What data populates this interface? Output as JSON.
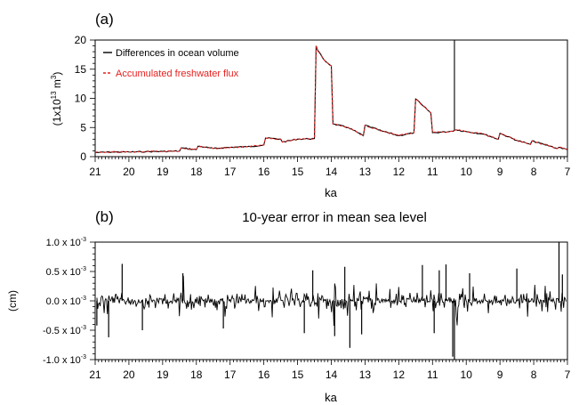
{
  "chart_data": [
    {
      "type": "line",
      "panel_label": "(a)",
      "title": "",
      "xlabel": "ka",
      "ylabel_parts": [
        "(1x10",
        "13",
        " m",
        "3",
        ")"
      ],
      "xlim": [
        21,
        7
      ],
      "ylim": [
        0,
        20
      ],
      "xticks": [
        "21",
        "20",
        "19",
        "18",
        "17",
        "16",
        "15",
        "14",
        "13",
        "12",
        "11",
        "10",
        "9",
        "8",
        "7"
      ],
      "yticks": [
        "0",
        "5",
        "10",
        "15",
        "20"
      ],
      "legend_position": "top-left",
      "series": [
        {
          "name": "Differences in ocean volume",
          "color": "#000000",
          "style": "solid",
          "x": [
            21,
            20.5,
            20,
            19.5,
            19,
            18.5,
            18.45,
            18,
            17.95,
            17.5,
            17,
            16.5,
            16,
            15.95,
            15.5,
            15.45,
            15,
            14.5,
            14.45,
            14.4,
            14.2,
            14,
            13.95,
            13.5,
            13.05,
            13,
            12.5,
            12,
            11.55,
            11.5,
            11.3,
            11.05,
            11,
            10.5,
            10.35,
            10.35,
            10.35,
            10.3,
            10,
            9.5,
            9.05,
            9,
            8.5,
            8.1,
            8.05,
            7.7,
            7.5,
            7.3,
            7.25,
            7
          ],
          "y": [
            0.7,
            0.8,
            0.8,
            0.85,
            0.9,
            0.95,
            1.5,
            1.2,
            1.8,
            1.4,
            1.6,
            1.7,
            2.0,
            3.2,
            3.0,
            2.5,
            3.0,
            3.1,
            19.0,
            18.2,
            16.5,
            15.6,
            5.6,
            5.0,
            3.6,
            5.4,
            4.4,
            3.6,
            4.1,
            9.9,
            8.8,
            7.5,
            4.1,
            4.3,
            4.5,
            20,
            4.5,
            4.6,
            4.3,
            3.9,
            3.0,
            4.0,
            2.8,
            2.1,
            2.7,
            2.1,
            1.8,
            1.4,
            1.6,
            1.2
          ]
        },
        {
          "name": "Accumulated freshwater flux",
          "color": "#e8201e",
          "style": "dashed",
          "x": [
            21,
            20.5,
            20,
            19.5,
            19,
            18.5,
            18.45,
            18,
            17.95,
            17.5,
            17,
            16.5,
            16,
            15.95,
            15.5,
            15.45,
            15,
            14.5,
            14.45,
            14.4,
            14.2,
            14,
            13.95,
            13.5,
            13.05,
            13,
            12.5,
            12,
            11.55,
            11.5,
            11.3,
            11.05,
            11,
            10.5,
            10.35,
            10.3,
            10,
            9.5,
            9.05,
            9,
            8.5,
            8.1,
            8.05,
            7.7,
            7.5,
            7.3,
            7.25,
            7
          ],
          "y": [
            0.7,
            0.8,
            0.8,
            0.85,
            0.9,
            0.95,
            1.5,
            1.2,
            1.8,
            1.4,
            1.6,
            1.7,
            2.0,
            3.2,
            3.0,
            2.5,
            3.0,
            3.1,
            19.0,
            18.2,
            16.5,
            15.6,
            5.6,
            5.0,
            3.6,
            5.4,
            4.4,
            3.6,
            4.1,
            9.9,
            8.8,
            7.5,
            4.1,
            4.3,
            4.5,
            4.6,
            4.3,
            3.9,
            3.0,
            4.0,
            2.8,
            2.1,
            2.7,
            2.1,
            1.8,
            1.4,
            1.6,
            1.2
          ]
        }
      ]
    },
    {
      "type": "line",
      "panel_label": "(b)",
      "title": "10-year error in mean sea level",
      "xlabel": "ka",
      "ylabel": "(cm)",
      "xlim": [
        21,
        7
      ],
      "ylim": [
        -0.001,
        0.001
      ],
      "xticks": [
        "21",
        "20",
        "19",
        "18",
        "17",
        "16",
        "15",
        "14",
        "13",
        "12",
        "11",
        "10",
        "9",
        "8",
        "7"
      ],
      "ytick_labels": [
        {
          "mantissa": "1.0 x 10",
          "exp": "-3"
        },
        {
          "mantissa": "0.5 x 10",
          "exp": "-3"
        },
        {
          "mantissa": "0.0 x 10",
          "exp": "-3"
        },
        {
          "mantissa": "-0.5 x 10",
          "exp": "-3"
        },
        {
          "mantissa": "-1.0 x 10",
          "exp": "-3"
        }
      ],
      "series": [
        {
          "name": "",
          "color": "#000000",
          "style": "solid",
          "description_values": "dense high-frequency noise around 0 with occasional spikes; extreme spikes at about 10.35 ka (down to -1.0e-3) and 7.25 ka (up to 1.0e-3)",
          "spikes": [
            {
              "x": 20.95,
              "y": -0.00042
            },
            {
              "x": 20.6,
              "y": -0.00062
            },
            {
              "x": 20.2,
              "y": 0.00063
            },
            {
              "x": 19.6,
              "y": -0.0005
            },
            {
              "x": 18.4,
              "y": 0.00047
            },
            {
              "x": 17.2,
              "y": -0.00047
            },
            {
              "x": 14.8,
              "y": -0.00055
            },
            {
              "x": 14.55,
              "y": 0.00052
            },
            {
              "x": 13.9,
              "y": -0.0006
            },
            {
              "x": 13.6,
              "y": 0.00058
            },
            {
              "x": 13.45,
              "y": -0.0008
            },
            {
              "x": 13.1,
              "y": -0.00057
            },
            {
              "x": 11.3,
              "y": 0.00061
            },
            {
              "x": 10.95,
              "y": -0.00055
            },
            {
              "x": 10.8,
              "y": 0.00052
            },
            {
              "x": 10.6,
              "y": 0.00062
            },
            {
              "x": 10.4,
              "y": -0.00095
            },
            {
              "x": 10.35,
              "y": -0.001
            },
            {
              "x": 9.9,
              "y": 0.00047
            },
            {
              "x": 8.5,
              "y": 0.00055
            },
            {
              "x": 7.25,
              "y": 0.001
            },
            {
              "x": 7.15,
              "y": 0.00045
            }
          ]
        }
      ]
    }
  ]
}
